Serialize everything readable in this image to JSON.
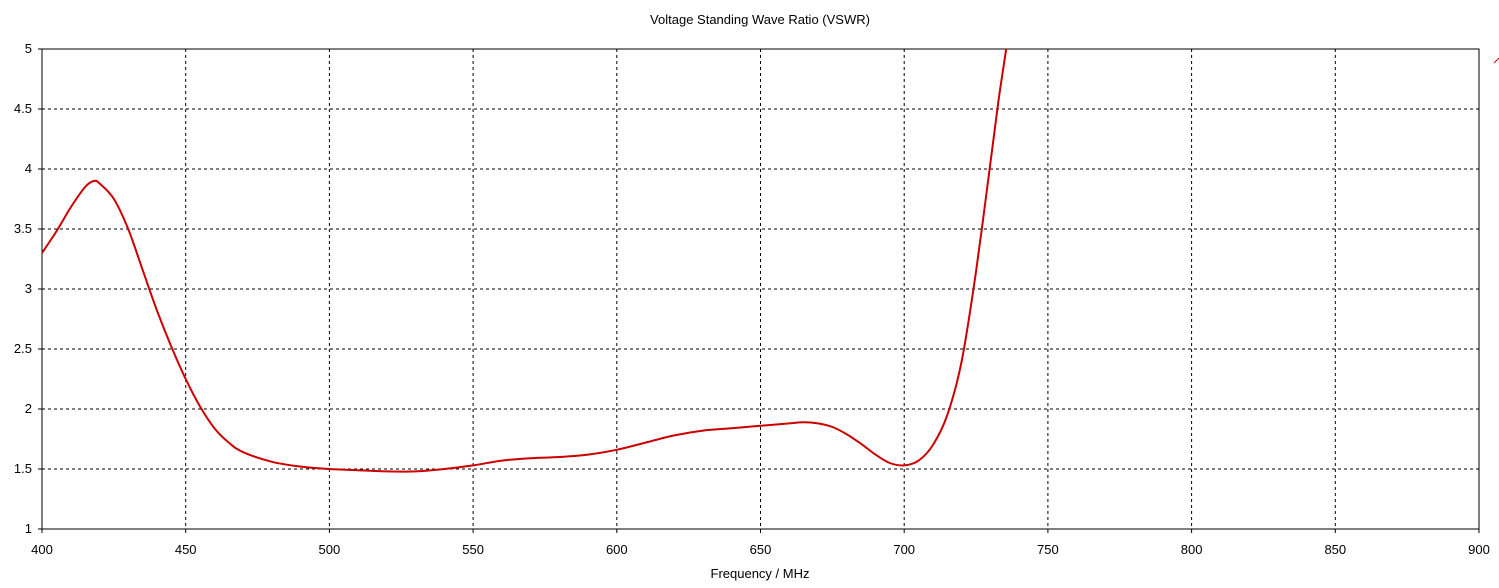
{
  "chart_data": {
    "type": "line",
    "title": "Voltage Standing Wave Ratio (VSWR)",
    "xlabel": "Frequency / MHz",
    "ylabel": "",
    "xlim": [
      400,
      900
    ],
    "ylim": [
      1,
      5
    ],
    "xticks": [
      "400",
      "450",
      "500",
      "550",
      "600",
      "650",
      "700",
      "750",
      "800",
      "850",
      "900"
    ],
    "yticks": [
      "1",
      "1.5",
      "2",
      "2.5",
      "3",
      "3.5",
      "4",
      "4.5",
      "5"
    ],
    "grid": true,
    "series_color": "#cc0000",
    "series": [
      {
        "x": [
          400,
          405,
          410,
          415,
          418,
          420,
          425,
          430,
          435,
          440,
          445,
          450,
          455,
          460,
          465,
          470,
          480,
          490,
          500,
          510,
          520,
          530,
          540,
          550,
          560,
          570,
          580,
          590,
          600,
          610,
          620,
          630,
          640,
          650,
          660,
          665,
          670,
          675,
          680,
          685,
          690,
          695,
          700,
          705,
          710,
          715,
          720,
          725,
          730,
          733,
          735.5
        ],
        "y": [
          3.3,
          3.48,
          3.68,
          3.85,
          3.9,
          3.88,
          3.75,
          3.5,
          3.16,
          2.82,
          2.52,
          2.25,
          2.02,
          1.84,
          1.72,
          1.64,
          1.56,
          1.52,
          1.5,
          1.49,
          1.48,
          1.48,
          1.5,
          1.53,
          1.57,
          1.59,
          1.6,
          1.62,
          1.66,
          1.72,
          1.78,
          1.82,
          1.84,
          1.86,
          1.88,
          1.89,
          1.88,
          1.85,
          1.79,
          1.71,
          1.62,
          1.55,
          1.53,
          1.57,
          1.7,
          1.95,
          2.4,
          3.15,
          4.05,
          4.6,
          5.0
        ]
      }
    ]
  }
}
